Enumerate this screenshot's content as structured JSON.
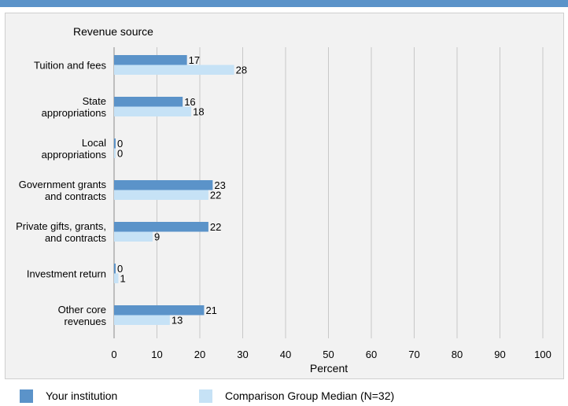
{
  "chart_data": {
    "type": "bar",
    "orientation": "horizontal",
    "title": "Revenue source",
    "xlabel": "Percent",
    "xlim": [
      0,
      100
    ],
    "xticks": [
      0,
      10,
      20,
      30,
      40,
      50,
      60,
      70,
      80,
      90,
      100
    ],
    "grid": true,
    "legend_position": "bottom",
    "categories": [
      [
        "Tuition and fees"
      ],
      [
        "State",
        "appropriations"
      ],
      [
        "Local",
        "appropriations"
      ],
      [
        "Government grants",
        "and contracts"
      ],
      [
        "Private gifts, grants,",
        "and contracts"
      ],
      [
        "Investment return"
      ],
      [
        "Other core",
        "revenues"
      ]
    ],
    "series": [
      {
        "name": "Your institution",
        "color": "#5b93c9",
        "values": [
          17,
          16,
          0,
          23,
          22,
          0,
          21
        ]
      },
      {
        "name": "Comparison Group Median (N=32)",
        "color": "#c6e2f6",
        "values": [
          28,
          18,
          0,
          22,
          9,
          1,
          13
        ]
      }
    ]
  },
  "legend": {
    "items": [
      "Your institution",
      "Comparison Group Median (N=32)"
    ]
  },
  "colors": {
    "accent": "#5b93c9",
    "secondary": "#c6e2f6",
    "panel": "#f2f2f2"
  }
}
